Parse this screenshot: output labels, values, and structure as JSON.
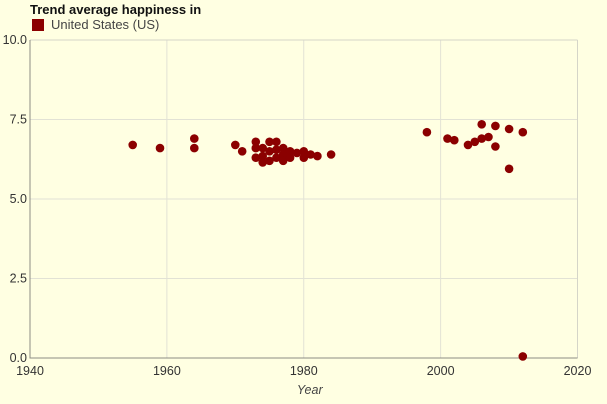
{
  "chart": {
    "title": "Trend average happiness in",
    "legend": {
      "label": "United States (US)",
      "marker_color": "#8B0000"
    }
  },
  "chart_data": {
    "type": "scatter",
    "title": "Trend average happiness in",
    "xlabel": "Year",
    "ylabel": "",
    "xlim": [
      1940,
      2020
    ],
    "ylim": [
      0,
      10
    ],
    "x_ticks": [
      {
        "value": 1940,
        "label": "1940"
      },
      {
        "value": 1960,
        "label": "1960"
      },
      {
        "value": 1980,
        "label": "1980"
      },
      {
        "value": 2000,
        "label": "2000"
      },
      {
        "value": 2020,
        "label": "2020"
      }
    ],
    "y_ticks": [
      {
        "value": 0,
        "label": "0.0"
      },
      {
        "value": 2.5,
        "label": "2.5"
      },
      {
        "value": 5,
        "label": "5.0"
      },
      {
        "value": 7.5,
        "label": "7.5"
      },
      {
        "value": 10,
        "label": "10.0"
      }
    ],
    "grid": true,
    "legend_position": "top-left",
    "series": [
      {
        "name": "United States (US)",
        "color": "#8B0000",
        "points": [
          [
            1955,
            6.7
          ],
          [
            1959,
            6.6
          ],
          [
            1964,
            6.9
          ],
          [
            1964,
            6.6
          ],
          [
            1970,
            6.7
          ],
          [
            1971,
            6.5
          ],
          [
            1973,
            6.8
          ],
          [
            1973,
            6.6
          ],
          [
            1973,
            6.3
          ],
          [
            1974,
            6.6
          ],
          [
            1974,
            6.35
          ],
          [
            1974,
            6.15
          ],
          [
            1975,
            6.8
          ],
          [
            1975,
            6.5
          ],
          [
            1975,
            6.2
          ],
          [
            1976,
            6.8
          ],
          [
            1976,
            6.55
          ],
          [
            1976,
            6.3
          ],
          [
            1977,
            6.6
          ],
          [
            1977,
            6.4
          ],
          [
            1977,
            6.2
          ],
          [
            1978,
            6.5
          ],
          [
            1978,
            6.3
          ],
          [
            1979,
            6.45
          ],
          [
            1980,
            6.5
          ],
          [
            1980,
            6.3
          ],
          [
            1981,
            6.4
          ],
          [
            1982,
            6.35
          ],
          [
            1984,
            6.4
          ],
          [
            1998,
            7.1
          ],
          [
            2001,
            6.9
          ],
          [
            2002,
            6.85
          ],
          [
            2004,
            6.7
          ],
          [
            2005,
            6.8
          ],
          [
            2006,
            6.9
          ],
          [
            2006,
            7.35
          ],
          [
            2008,
            7.3
          ],
          [
            2007,
            6.95
          ],
          [
            2008,
            6.65
          ],
          [
            2010,
            7.2
          ],
          [
            2010,
            5.95
          ],
          [
            2012,
            7.1
          ],
          [
            2012,
            0.05
          ]
        ]
      }
    ]
  },
  "colors": {
    "background": "#FFFFE2",
    "plot_border": "#D5D5C8",
    "axis_line": "#8C8C84",
    "gridline": "#E2E2D5",
    "tick_text": "#333333",
    "axis_label_text": "#454545",
    "point": "#8B0000"
  }
}
